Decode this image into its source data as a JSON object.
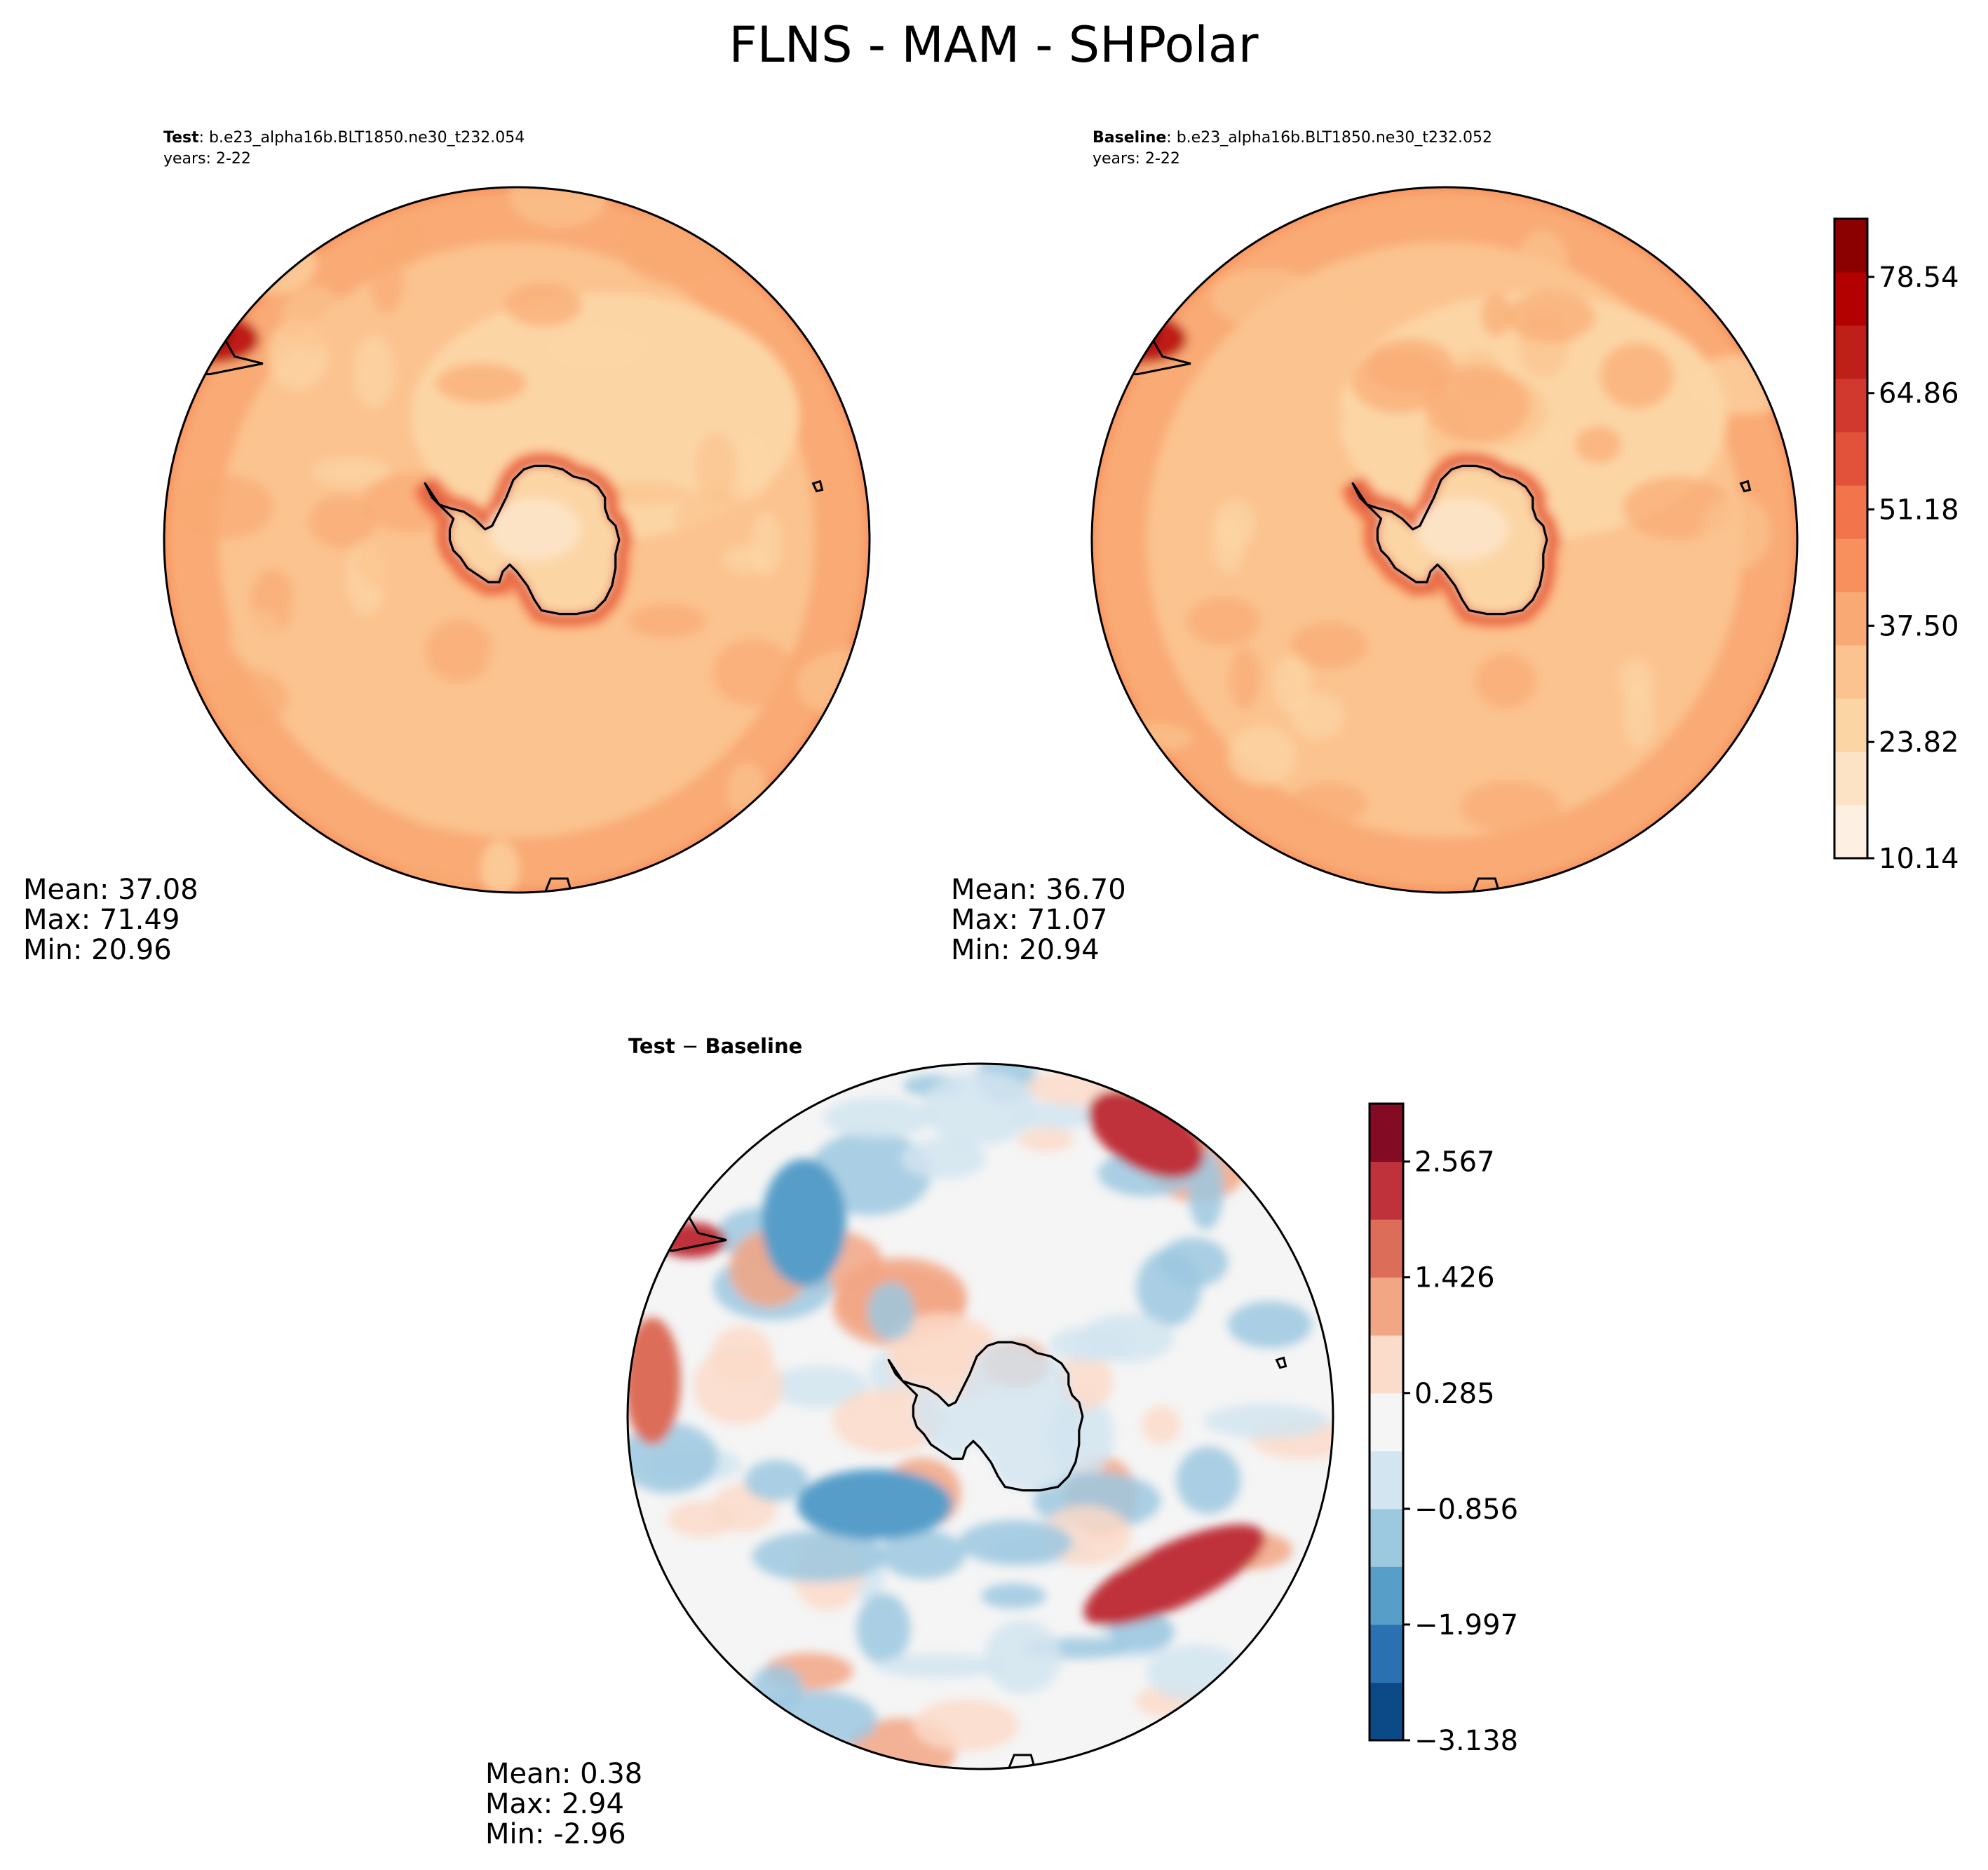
{
  "figure": {
    "title": "FLNS - MAM - SHPolar"
  },
  "panels": [
    {
      "id": "test",
      "label_bold": "Test",
      "case": "b.e23_alpha16b.BLT1850.ne30_t232.054",
      "years": "years: 2-22",
      "stats": [
        "Mean: 37.08",
        "Max: 71.49",
        "Min: 20.96"
      ],
      "colormap": "RdOr",
      "variant": 0
    },
    {
      "id": "baseline",
      "label_bold": "Baseline",
      "case": "b.e23_alpha16b.BLT1850.ne30_t232.052",
      "years": "years: 2-22",
      "stats": [
        "Mean: 36.70",
        "Max: 71.07",
        "Min: 20.94"
      ],
      "colormap": "RdOr",
      "variant": 1
    },
    {
      "id": "difference",
      "label_bold": "Test",
      "label_op": "−",
      "label_bold2": "Baseline",
      "stats": [
        "Mean:  0.38",
        "Max:  2.94",
        "Min: -2.96"
      ],
      "colormap": "RdBu",
      "variant": 2
    }
  ],
  "colorbars": [
    {
      "id": "main",
      "ticks": [
        "10.14",
        "23.82",
        "37.50",
        "51.18",
        "64.86",
        "78.54"
      ],
      "tick_values": [
        10.14,
        23.82,
        37.5,
        51.18,
        64.86,
        78.54
      ],
      "range": [
        10.14,
        85.38
      ],
      "colors": [
        "#fdf0e2",
        "#fde3c5",
        "#fcd5a5",
        "#fbc38f",
        "#f9aa74",
        "#f7905d",
        "#f2744a",
        "#e2523b",
        "#d2392e",
        "#bf1f19",
        "#b30000",
        "#8b0000"
      ]
    },
    {
      "id": "diff",
      "ticks": [
        "−3.138",
        "−1.997",
        "−0.856",
        "0.285",
        "1.426",
        "2.567"
      ],
      "tick_values": [
        -3.138,
        -1.997,
        -0.856,
        0.285,
        1.426,
        2.567
      ],
      "range": [
        -3.138,
        3.138
      ],
      "colors": [
        "#0c4a87",
        "#2a71b2",
        "#579ec9",
        "#9cc8e0",
        "#d2e5f0",
        "#f5f5f5",
        "#fbdbc9",
        "#f2a684",
        "#dc6d58",
        "#bf323b",
        "#830c24"
      ]
    }
  ],
  "chart_data": [
    {
      "type": "heatmap",
      "title": "Test: b.e23_alpha16b.BLT1850.ne30_t232.054",
      "region": "SHPolar",
      "variable": "FLNS",
      "season": "MAM",
      "mean": 37.08,
      "max": 71.49,
      "min": 20.96,
      "colorbar_range": [
        10.14,
        85.38
      ]
    },
    {
      "type": "heatmap",
      "title": "Baseline: b.e23_alpha16b.BLT1850.ne30_t232.052",
      "region": "SHPolar",
      "variable": "FLNS",
      "season": "MAM",
      "mean": 36.7,
      "max": 71.07,
      "min": 20.94,
      "colorbar_range": [
        10.14,
        85.38
      ]
    },
    {
      "type": "heatmap",
      "title": "Test − Baseline",
      "region": "SHPolar",
      "variable": "FLNS",
      "season": "MAM",
      "mean": 0.38,
      "max": 2.94,
      "min": -2.96,
      "colorbar_range": [
        -3.138,
        3.138
      ]
    }
  ]
}
